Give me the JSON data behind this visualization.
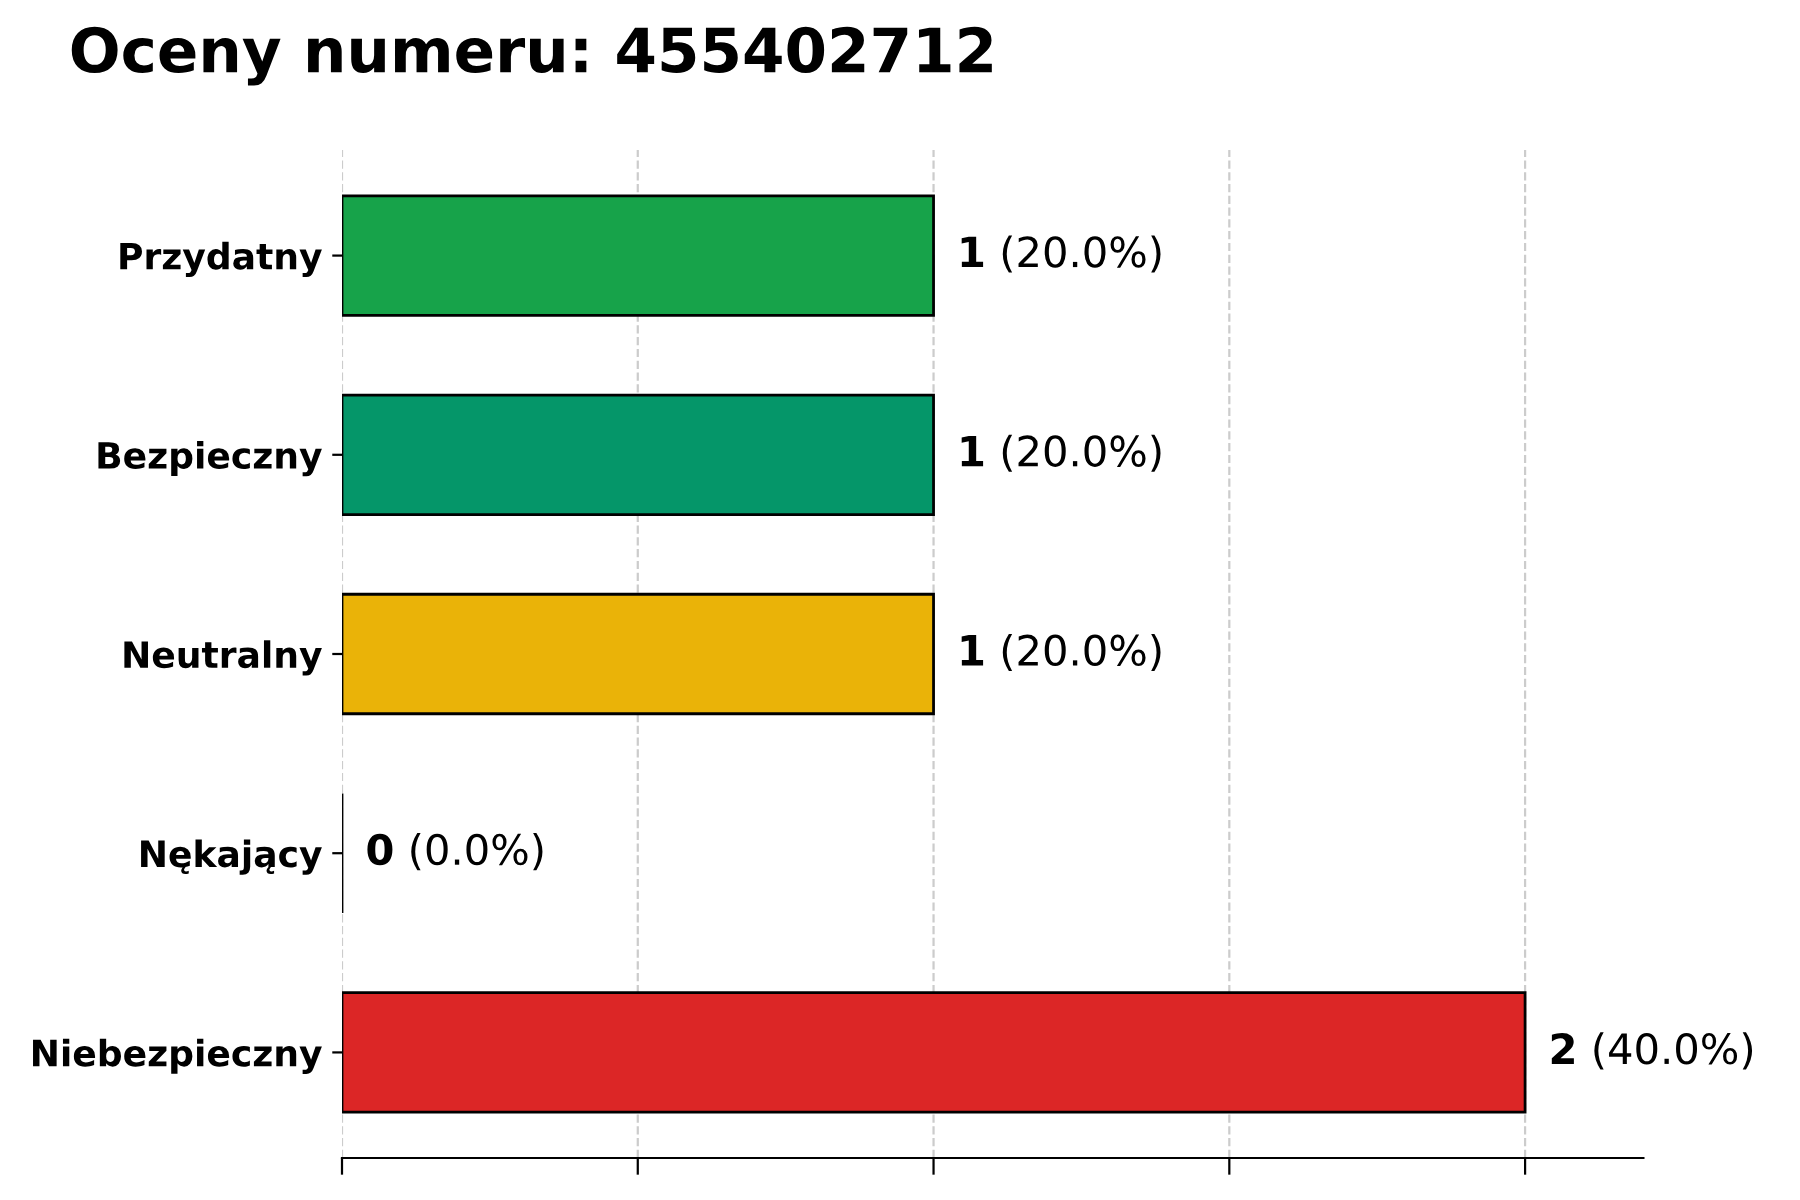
{
  "chart_data": {
    "type": "bar",
    "orientation": "horizontal",
    "title": "Oceny numeru: 455402712",
    "categories": [
      "Przydatny",
      "Bezpieczny",
      "Neutralny",
      "Nękający",
      "Niebezpieczny"
    ],
    "values": [
      1,
      1,
      1,
      0,
      2
    ],
    "colors": [
      "#17a34a",
      "#059669",
      "#eab308",
      "#000000",
      "#dc2626"
    ],
    "value_labels": [
      "1 (20.0%)",
      "1 (20.0%)",
      "1 (20.0%)",
      "0 (0.0%)",
      "2 (40.0%)"
    ],
    "xlim": [
      0,
      2.2
    ],
    "xticks": [
      {
        "value": 0,
        "label": null
      },
      {
        "value": 0.5,
        "label": null
      },
      {
        "value": 1,
        "label": null
      },
      {
        "value": 1.5,
        "label": null
      },
      {
        "value": 2,
        "label": null
      }
    ],
    "tick_labels": "y",
    "grid": "x"
  }
}
